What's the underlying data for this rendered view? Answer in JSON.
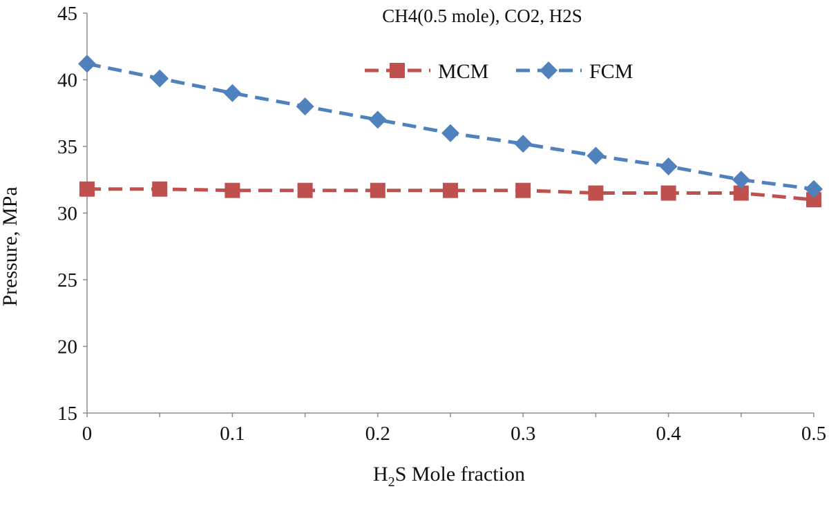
{
  "chart_data": {
    "type": "line",
    "title": "CH4(0.5 mole), CO2, H2S",
    "xlabel": {
      "prefix": "H",
      "subscript": "2",
      "suffix": "S Mole fraction"
    },
    "ylabel": "Pressure, MPa",
    "x": [
      0,
      0.05,
      0.1,
      0.15,
      0.2,
      0.25,
      0.3,
      0.35,
      0.4,
      0.45,
      0.5
    ],
    "xlim": [
      0,
      0.5
    ],
    "ylim": [
      15,
      45
    ],
    "x_ticks": [
      "0",
      "0.1",
      "0.2",
      "0.3",
      "0.4",
      "0.5"
    ],
    "y_ticks": [
      "15",
      "20",
      "25",
      "30",
      "35",
      "40",
      "45"
    ],
    "grid": false,
    "legend_position": "top-right",
    "series": [
      {
        "name": "MCM",
        "color": "#c0504d",
        "marker": "square",
        "line_style": "dashed",
        "values": [
          31.8,
          31.8,
          31.7,
          31.7,
          31.7,
          31.7,
          31.7,
          31.5,
          31.5,
          31.5,
          31.0
        ]
      },
      {
        "name": "FCM",
        "color": "#4f81bd",
        "marker": "diamond",
        "line_style": "dashed",
        "values": [
          41.2,
          40.1,
          39.0,
          38.0,
          37.0,
          36.0,
          35.2,
          34.3,
          33.5,
          32.5,
          31.8
        ]
      }
    ]
  }
}
